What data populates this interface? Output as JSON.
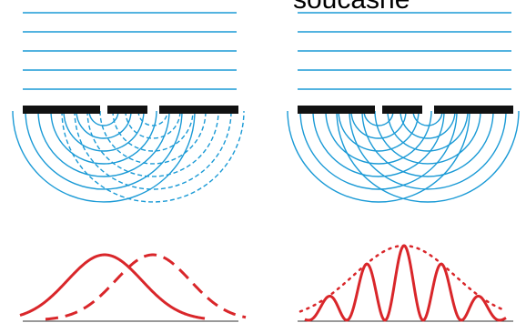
{
  "label": "současně"
}
